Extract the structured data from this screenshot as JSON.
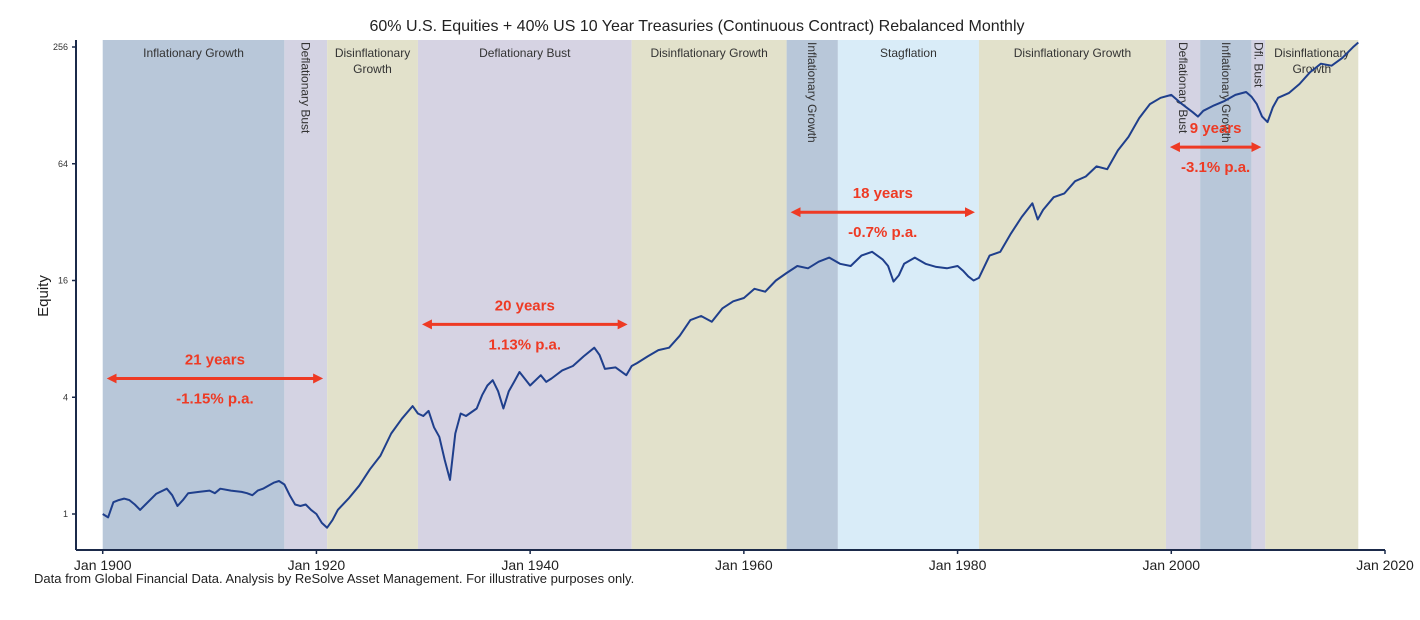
{
  "chart_data": {
    "type": "line",
    "title": "60% U.S. Equities + 40% US 10 Year Treasuries (Continuous Contract) Rebalanced Monthly",
    "ylabel": "Equity",
    "xlabel": "",
    "y_scale": "log2",
    "ylim": [
      0.75,
      256
    ],
    "xlim": [
      1897.5,
      2020
    ],
    "y_ticks": [
      1,
      4,
      16,
      64,
      256
    ],
    "y_tick_labels": [
      "1",
      "4",
      "16",
      "64",
      "256"
    ],
    "x_ticks": [
      1900,
      1920,
      1940,
      1960,
      1980,
      2000,
      2020
    ],
    "x_tick_labels": [
      "Jan 1900",
      "Jan 1920",
      "Jan 1940",
      "Jan 1960",
      "Jan 1980",
      "Jan 2000",
      "Jan 2020"
    ],
    "grid": false,
    "series": [
      {
        "color": "#1f3f8c",
        "x": [
          1900.0,
          1900.5,
          1901.0,
          1901.5,
          1902.0,
          1902.5,
          1903.0,
          1903.5,
          1904.0,
          1905.0,
          1906.0,
          1906.5,
          1907.0,
          1907.5,
          1908.0,
          1909.0,
          1910.0,
          1910.5,
          1911.0,
          1912.0,
          1913.0,
          1913.5,
          1914.0,
          1914.5,
          1915.0,
          1915.5,
          1916.0,
          1916.5,
          1917.0,
          1917.5,
          1918.0,
          1918.5,
          1919.0,
          1919.5,
          1920.0,
          1920.5,
          1921.0,
          1921.5,
          1922.0,
          1923.0,
          1924.0,
          1925.0,
          1926.0,
          1927.0,
          1928.0,
          1929.0,
          1929.5,
          1930.0,
          1930.5,
          1931.0,
          1931.5,
          1932.0,
          1932.5,
          1933.0,
          1933.5,
          1934.0,
          1935.0,
          1935.5,
          1936.0,
          1936.5,
          1937.0,
          1937.5,
          1938.0,
          1938.5,
          1939.0,
          1940.0,
          1941.0,
          1941.5,
          1942.0,
          1943.0,
          1944.0,
          1945.0,
          1946.0,
          1946.5,
          1947.0,
          1948.0,
          1949.0,
          1949.5,
          1950.0,
          1951.0,
          1952.0,
          1953.0,
          1954.0,
          1955.0,
          1956.0,
          1957.0,
          1958.0,
          1959.0,
          1960.0,
          1961.0,
          1962.0,
          1963.0,
          1964.0,
          1965.0,
          1966.0,
          1967.0,
          1968.0,
          1969.0,
          1970.0,
          1971.0,
          1972.0,
          1973.0,
          1973.5,
          1974.0,
          1974.5,
          1975.0,
          1976.0,
          1977.0,
          1978.0,
          1979.0,
          1980.0,
          1980.5,
          1981.0,
          1981.5,
          1982.0,
          1983.0,
          1984.0,
          1985.0,
          1986.0,
          1987.0,
          1987.5,
          1988.0,
          1989.0,
          1990.0,
          1991.0,
          1992.0,
          1993.0,
          1994.0,
          1995.0,
          1996.0,
          1997.0,
          1998.0,
          1999.0,
          2000.0,
          2001.0,
          2002.0,
          2002.5,
          2003.0,
          2004.0,
          2005.0,
          2006.0,
          2007.0,
          2007.5,
          2008.0,
          2008.5,
          2009.0,
          2009.5,
          2010.0,
          2011.0,
          2012.0,
          2013.0,
          2014.0,
          2015.0,
          2016.0,
          2017.0,
          2017.5
        ],
        "y": [
          1.0,
          0.96,
          1.15,
          1.18,
          1.2,
          1.18,
          1.12,
          1.05,
          1.12,
          1.27,
          1.35,
          1.25,
          1.1,
          1.18,
          1.28,
          1.3,
          1.32,
          1.28,
          1.35,
          1.32,
          1.3,
          1.28,
          1.25,
          1.32,
          1.35,
          1.4,
          1.45,
          1.48,
          1.42,
          1.25,
          1.12,
          1.1,
          1.12,
          1.05,
          1.0,
          0.9,
          0.85,
          0.93,
          1.05,
          1.2,
          1.4,
          1.7,
          2.0,
          2.6,
          3.1,
          3.6,
          3.3,
          3.2,
          3.4,
          2.8,
          2.5,
          1.9,
          1.5,
          2.6,
          3.3,
          3.2,
          3.5,
          4.1,
          4.6,
          4.9,
          4.3,
          3.5,
          4.3,
          4.8,
          5.4,
          4.6,
          5.2,
          4.8,
          5.0,
          5.5,
          5.8,
          6.5,
          7.2,
          6.6,
          5.6,
          5.7,
          5.2,
          5.8,
          6.0,
          6.5,
          7.0,
          7.2,
          8.3,
          10.0,
          10.5,
          9.8,
          11.5,
          12.5,
          13.0,
          14.5,
          14.0,
          16.0,
          17.5,
          19.0,
          18.5,
          20.0,
          21.0,
          19.5,
          19.0,
          21.5,
          22.5,
          20.5,
          19.0,
          15.8,
          17.0,
          19.5,
          21.0,
          19.5,
          18.8,
          18.5,
          19.0,
          18.0,
          16.8,
          16.0,
          16.5,
          21.5,
          22.5,
          28.0,
          34.0,
          40.0,
          33.0,
          37.0,
          43.0,
          45.0,
          52.0,
          55.0,
          62.0,
          60.0,
          75.0,
          88.0,
          110.0,
          130.0,
          140.0,
          145.0,
          130.0,
          118.0,
          112.0,
          120.0,
          128.0,
          135.0,
          145.0,
          150.0,
          142.0,
          130.0,
          112.0,
          105.0,
          125.0,
          140.0,
          148.0,
          165.0,
          190.0,
          210.0,
          205.0,
          225.0,
          255.0,
          270.0
        ]
      }
    ],
    "regimes": [
      {
        "label": "Inflationary Growth",
        "start": 1900.0,
        "end": 1917.0,
        "color": "#b8c7d9",
        "label_orientation": "horizontal"
      },
      {
        "label": "Deflationary Bust",
        "start": 1917.0,
        "end": 1921.0,
        "color": "#d4d3e3",
        "label_orientation": "vertical"
      },
      {
        "label": "Disinflationary Growth",
        "start": 1921.0,
        "end": 1929.5,
        "color": "#e2e1cb",
        "label_orientation": "horizontal"
      },
      {
        "label": "Deflationary Bust",
        "start": 1929.5,
        "end": 1949.5,
        "color": "#d6d3e3",
        "label_orientation": "horizontal"
      },
      {
        "label": "Disinflationary Growth",
        "start": 1949.5,
        "end": 1964.0,
        "color": "#e2e1cb",
        "label_orientation": "horizontal"
      },
      {
        "label": "Inflationary Growth",
        "start": 1964.0,
        "end": 1968.8,
        "color": "#b8c7d9",
        "label_orientation": "vertical"
      },
      {
        "label": "Stagflation",
        "start": 1968.8,
        "end": 1982.0,
        "color": "#d9ecf8",
        "label_orientation": "horizontal"
      },
      {
        "label": "Disinflationary Growth",
        "start": 1982.0,
        "end": 1999.5,
        "color": "#e2e1cb",
        "label_orientation": "horizontal"
      },
      {
        "label": "Deflationary Bust",
        "start": 1999.5,
        "end": 2002.7,
        "color": "#d4d3e3",
        "label_orientation": "vertical"
      },
      {
        "label": "Inflationary Growth",
        "start": 2002.7,
        "end": 2007.5,
        "color": "#b8c7d9",
        "label_orientation": "vertical"
      },
      {
        "label": "Dfl. Bust",
        "start": 2007.5,
        "end": 2008.8,
        "color": "#d4d3e3",
        "label_orientation": "vertical"
      },
      {
        "label": "Disinflationary Growth",
        "start": 2008.8,
        "end": 2017.5,
        "color": "#e2e1cb",
        "label_orientation": "horizontal"
      }
    ],
    "annotations": [
      {
        "years": "21 years",
        "rate": "-1.15% p.a.",
        "x_start": 1900.0,
        "x_end": 1921.0,
        "y": 5.0
      },
      {
        "years": "20 years",
        "rate": "1.13% p.a.",
        "x_start": 1929.5,
        "x_end": 1949.5,
        "y": 9.5
      },
      {
        "years": "18 years",
        "rate": "-0.7% p.a.",
        "x_start": 1964.0,
        "x_end": 1982.0,
        "y": 36.0
      },
      {
        "years": "9 years",
        "rate": "-3.1% p.a.",
        "x_start": 1999.5,
        "x_end": 2008.8,
        "y": 78.0
      }
    ],
    "annotation_color": "#ee3a24"
  },
  "footnote": "Data from Global Financial Data. Analysis by ReSolve Asset Management. For illustrative purposes only."
}
